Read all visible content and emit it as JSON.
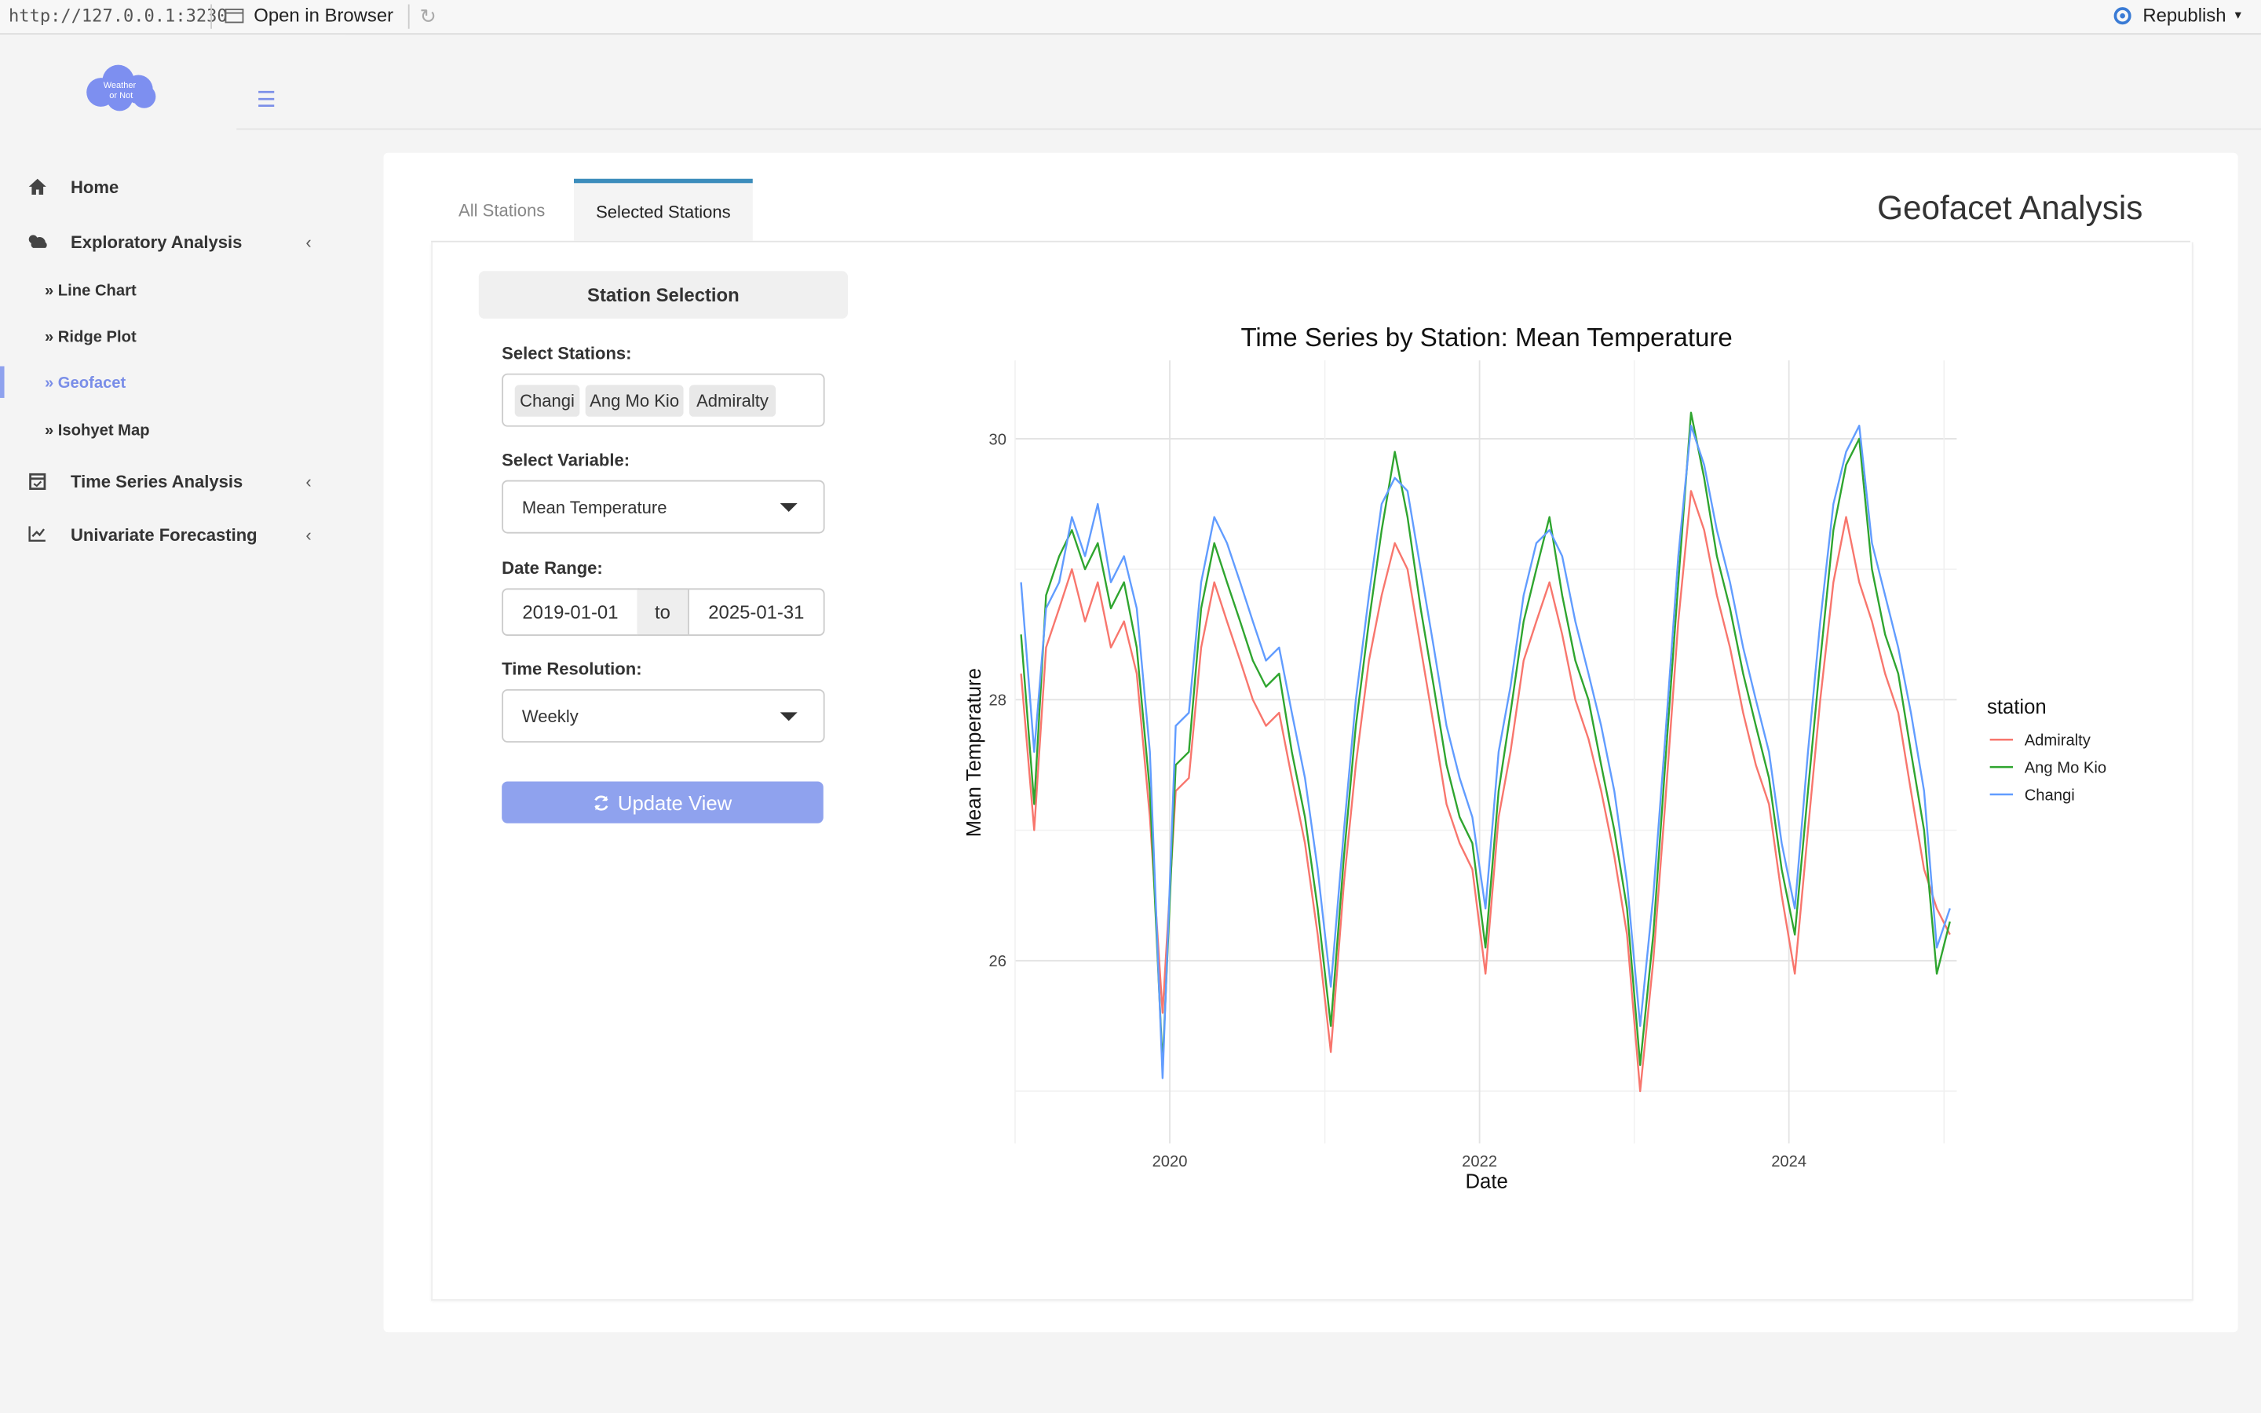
{
  "topbar": {
    "url": "http://127.0.0.1:3230",
    "open_in_browser": "Open in Browser",
    "republish": "Republish"
  },
  "logo_text": "Weather or Not",
  "sidebar": {
    "items": [
      {
        "label": "Home",
        "icon": "home-icon"
      },
      {
        "label": "Exploratory Analysis",
        "icon": "cloud-sun-icon"
      },
      {
        "label": "Time Series Analysis",
        "icon": "calendar-check-icon"
      },
      {
        "label": "Univariate Forecasting",
        "icon": "line-chart-icon"
      }
    ],
    "subitems": [
      {
        "label": "Line Chart",
        "prefix": "»"
      },
      {
        "label": "Ridge Plot",
        "prefix": "»"
      },
      {
        "label": "Geofacet",
        "prefix": "»",
        "active": true
      },
      {
        "label": "Isohyet Map",
        "prefix": "»"
      }
    ]
  },
  "tabs": [
    "All Stations",
    "Selected Stations"
  ],
  "active_tab": "Selected Stations",
  "page_title": "Geofacet Analysis",
  "form": {
    "section_title": "Station Selection",
    "stations_label": "Select Stations:",
    "stations": [
      "Changi",
      "Ang Mo Kio",
      "Admiralty"
    ],
    "variable_label": "Select Variable:",
    "variable_value": "Mean Temperature",
    "date_label": "Date Range:",
    "date_start": "2019-01-01",
    "date_sep": "to",
    "date_end": "2025-01-31",
    "resolution_label": "Time Resolution:",
    "resolution_value": "Weekly",
    "update_button": "Update View"
  },
  "colors": {
    "accent": "#8fa2ee",
    "admiralty": "#f8766d",
    "ang_mo_kio": "#2fa52f",
    "changi": "#619cff"
  },
  "chart_data": {
    "type": "line",
    "title": "Time Series by Station: Mean Temperature",
    "xlabel": "Date",
    "ylabel": "Mean Temperature",
    "legend_title": "station",
    "legend_position": "right",
    "xlim": [
      "2019-01-01",
      "2025-01-31"
    ],
    "x_ticks": [
      "2020",
      "2022",
      "2024"
    ],
    "ylim": [
      24.6,
      30.6
    ],
    "y_ticks": [
      26,
      28,
      30
    ],
    "grid": true,
    "x": [
      "2019-01",
      "2019-02",
      "2019-03",
      "2019-04",
      "2019-05",
      "2019-06",
      "2019-07",
      "2019-08",
      "2019-09",
      "2019-10",
      "2019-11",
      "2019-12",
      "2020-01",
      "2020-02",
      "2020-03",
      "2020-04",
      "2020-05",
      "2020-06",
      "2020-07",
      "2020-08",
      "2020-09",
      "2020-10",
      "2020-11",
      "2020-12",
      "2021-01",
      "2021-02",
      "2021-03",
      "2021-04",
      "2021-05",
      "2021-06",
      "2021-07",
      "2021-08",
      "2021-09",
      "2021-10",
      "2021-11",
      "2021-12",
      "2022-01",
      "2022-02",
      "2022-03",
      "2022-04",
      "2022-05",
      "2022-06",
      "2022-07",
      "2022-08",
      "2022-09",
      "2022-10",
      "2022-11",
      "2022-12",
      "2023-01",
      "2023-02",
      "2023-03",
      "2023-04",
      "2023-05",
      "2023-06",
      "2023-07",
      "2023-08",
      "2023-09",
      "2023-10",
      "2023-11",
      "2023-12",
      "2024-01",
      "2024-02",
      "2024-03",
      "2024-04",
      "2024-05",
      "2024-06",
      "2024-07",
      "2024-08",
      "2024-09",
      "2024-10",
      "2024-11",
      "2024-12",
      "2025-01"
    ],
    "series": [
      {
        "name": "Admiralty",
        "values": [
          28.2,
          27.0,
          28.4,
          28.7,
          29.0,
          28.6,
          28.9,
          28.4,
          28.6,
          28.2,
          27.1,
          25.6,
          27.3,
          27.4,
          28.4,
          28.9,
          28.6,
          28.3,
          28.0,
          27.8,
          27.9,
          27.4,
          26.9,
          26.2,
          25.3,
          26.6,
          27.5,
          28.3,
          28.8,
          29.2,
          29.0,
          28.4,
          27.8,
          27.2,
          26.9,
          26.7,
          25.9,
          27.1,
          27.6,
          28.3,
          28.6,
          28.9,
          28.5,
          28.0,
          27.7,
          27.3,
          26.8,
          26.2,
          25.0,
          26.0,
          27.2,
          28.6,
          29.6,
          29.3,
          28.8,
          28.4,
          27.9,
          27.5,
          27.2,
          26.5,
          25.9,
          27.0,
          28.0,
          28.9,
          29.4,
          28.9,
          28.6,
          28.2,
          27.9,
          27.3,
          26.7,
          26.4,
          26.2
        ]
      },
      {
        "name": "Ang Mo Kio",
        "values": [
          28.5,
          27.2,
          28.8,
          29.1,
          29.3,
          29.0,
          29.2,
          28.7,
          28.9,
          28.4,
          27.3,
          25.2,
          27.5,
          27.6,
          28.7,
          29.2,
          28.9,
          28.6,
          28.3,
          28.1,
          28.2,
          27.6,
          27.1,
          26.4,
          25.5,
          26.8,
          27.8,
          28.6,
          29.3,
          29.9,
          29.4,
          28.7,
          28.1,
          27.5,
          27.1,
          26.9,
          26.1,
          27.3,
          27.9,
          28.6,
          29.0,
          29.4,
          28.8,
          28.3,
          28.0,
          27.5,
          27.0,
          26.4,
          25.2,
          26.2,
          27.5,
          28.9,
          30.2,
          29.7,
          29.1,
          28.7,
          28.2,
          27.8,
          27.4,
          26.7,
          26.2,
          27.3,
          28.3,
          29.3,
          29.8,
          30.0,
          29.0,
          28.5,
          28.2,
          27.6,
          27.0,
          25.9,
          26.3
        ]
      },
      {
        "name": "Changi",
        "values": [
          28.9,
          27.6,
          28.7,
          28.9,
          29.4,
          29.1,
          29.5,
          28.9,
          29.1,
          28.7,
          27.6,
          25.1,
          27.8,
          27.9,
          28.9,
          29.4,
          29.2,
          28.9,
          28.6,
          28.3,
          28.4,
          27.9,
          27.4,
          26.7,
          25.8,
          27.0,
          28.0,
          28.8,
          29.5,
          29.7,
          29.6,
          29.0,
          28.4,
          27.8,
          27.4,
          27.1,
          26.4,
          27.6,
          28.1,
          28.8,
          29.2,
          29.3,
          29.1,
          28.6,
          28.2,
          27.8,
          27.3,
          26.6,
          25.5,
          26.5,
          27.7,
          29.1,
          30.1,
          29.8,
          29.3,
          28.9,
          28.4,
          28.0,
          27.6,
          26.9,
          26.4,
          27.6,
          28.6,
          29.5,
          29.9,
          30.1,
          29.2,
          28.8,
          28.4,
          27.9,
          27.3,
          26.1,
          26.4
        ]
      }
    ]
  }
}
